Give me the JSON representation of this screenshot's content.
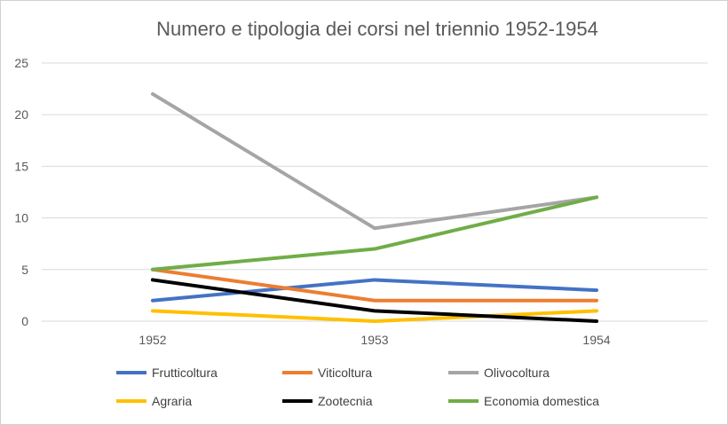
{
  "chart_data": {
    "type": "line",
    "title": "Numero e tipologia dei corsi nel triennio 1952-1954",
    "xlabel": "",
    "ylabel": "",
    "categories": [
      "1952",
      "1953",
      "1954"
    ],
    "ylim": [
      0,
      25
    ],
    "yticks": [
      "0",
      "5",
      "10",
      "15",
      "20",
      "25"
    ],
    "grid": true,
    "legend_position": "bottom",
    "series": [
      {
        "name": "Frutticoltura",
        "color": "#4472C4",
        "values": [
          2,
          4,
          3
        ]
      },
      {
        "name": "Viticoltura",
        "color": "#ED7D31",
        "values": [
          5,
          2,
          2
        ]
      },
      {
        "name": "Olivocoltura",
        "color": "#A5A5A5",
        "values": [
          22,
          9,
          12
        ]
      },
      {
        "name": "Agraria",
        "color": "#FFC000",
        "values": [
          1,
          0,
          1
        ]
      },
      {
        "name": "Zootecnia",
        "color": "#000000",
        "values": [
          4,
          1,
          0
        ]
      },
      {
        "name": "Economia domestica",
        "color": "#70AD47",
        "values": [
          5,
          7,
          12
        ]
      }
    ]
  }
}
